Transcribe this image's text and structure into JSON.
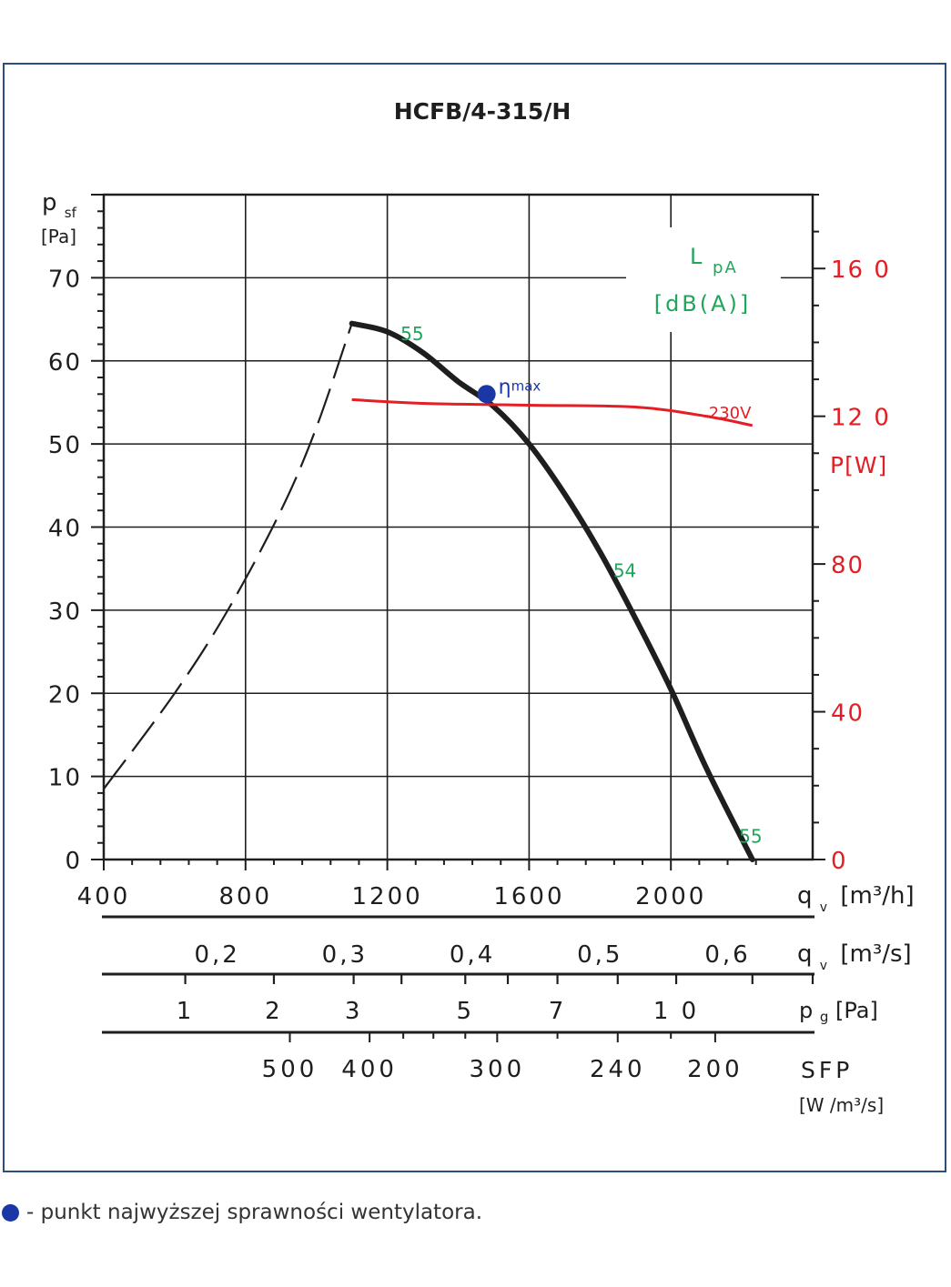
{
  "footnote": "- punkt najwyższej sprawności wentylatora.",
  "colors": {
    "frame": "#2a4f7c",
    "pressure_curve": "#1e1e1e",
    "power_curve": "#e31e24",
    "noise_labels": "#1fa65a",
    "eta_point": "#1a37a6"
  },
  "chart_data": {
    "type": "line",
    "title": "HCFB/4-315/H",
    "grid": true,
    "left_axis": {
      "label_main": "p",
      "label_sub": "sf",
      "unit": "[Pa]",
      "range": [
        0,
        80
      ],
      "ticks": [
        "0",
        "10",
        "20",
        "30",
        "40",
        "50",
        "60",
        "70"
      ]
    },
    "right_axis": {
      "label": "P[W]",
      "range": [
        0,
        180
      ],
      "ticks": [
        "0",
        "40",
        "80",
        "12 0",
        "16 0"
      ]
    },
    "x_axis": {
      "label_main": "q",
      "label_sub": "v",
      "unit": "[m³/h]",
      "range": [
        400,
        2400
      ],
      "ticks": [
        "400",
        "800",
        "1200",
        "1600",
        "2000"
      ]
    },
    "secondary_scales": [
      {
        "name": "qv_m3s",
        "label_main": "q",
        "label_sub": "v",
        "unit": "[m³/s]",
        "labels": [
          "0,2",
          "0,3",
          "0,4",
          "0,5",
          "0,6"
        ],
        "label_positions_m3h": [
          720,
          1080,
          1440,
          1800,
          2160
        ]
      },
      {
        "name": "pg",
        "label_main": "p",
        "label_sub": "g",
        "unit": "[Pa]",
        "labels": [
          "1",
          "2",
          "3",
          "5",
          "7",
          "1 0"
        ],
        "label_positions_m3h": [
          630,
          880,
          1105,
          1420,
          1680,
          2015
        ]
      },
      {
        "name": "sfp",
        "label": "SFP",
        "unit": "[W /m³/s]",
        "labels": [
          "500",
          "400",
          "300",
          "240",
          "200"
        ],
        "label_positions_m3h": [
          925,
          1150,
          1510,
          1850,
          2125
        ]
      }
    ],
    "series": [
      {
        "role": "pressure_dashed",
        "x": [
          400,
          600,
          750,
          900,
          1000,
          1100
        ],
        "y": [
          8.5,
          20,
          30,
          42,
          52,
          64.5
        ]
      },
      {
        "role": "pressure",
        "x": [
          1100,
          1200,
          1300,
          1400,
          1500,
          1600,
          1700,
          1800,
          1900,
          2000,
          2100,
          2230
        ],
        "y": [
          64.5,
          63.5,
          61,
          57.5,
          54.5,
          50,
          44,
          37,
          29,
          20.5,
          11,
          0
        ]
      },
      {
        "name": "230V",
        "role": "power",
        "x": [
          1100,
          1300,
          1600,
          1900,
          2100,
          2230
        ],
        "y": [
          124.5,
          123.5,
          123,
          122.5,
          120,
          117.5
        ]
      }
    ],
    "noise_label": {
      "line1": "L",
      "line1_sub": "pA",
      "line2": "[dB(A)]"
    },
    "noise_points": [
      {
        "text": "55",
        "x": 1270,
        "y": 62.5
      },
      {
        "text": "54",
        "x": 1870,
        "y": 34
      },
      {
        "text": "55",
        "x": 2225,
        "y": 2
      }
    ],
    "eta_max": {
      "x": 1480,
      "y": 56,
      "label": "η",
      "label_sub": "max"
    }
  }
}
